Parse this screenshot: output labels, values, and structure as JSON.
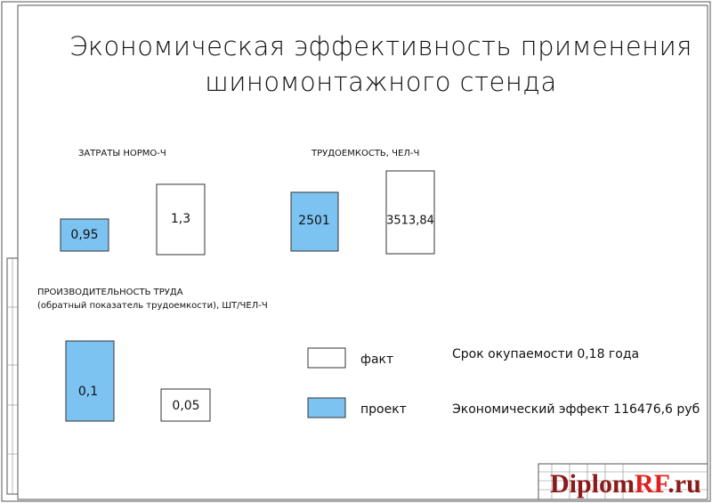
{
  "title": {
    "line1": "Экономическая эффективность применения",
    "line2": "шиномонтажного стенда"
  },
  "sections": [
    {
      "label": "ЗАТРАТЫ НОРМО-Ч",
      "project": "0,95",
      "fact": "1,3"
    },
    {
      "label": "ТРУДОЕМКОСТЬ, ЧЕЛ-Ч",
      "project": "2501",
      "fact": "3513,84"
    },
    {
      "label": "ПРОИЗВОДИТЕЛЬНОСТЬ ТРУДА",
      "sublabel": "(обратный показатель трудоемкости), ШТ/ЧЕЛ-Ч",
      "project": "0,1",
      "fact": "0,05"
    }
  ],
  "legend": {
    "fact": "факт",
    "project": "проект"
  },
  "results": {
    "payback": "Срок окупаемости 0,18 года",
    "effect": "Экономический эффект 116476,6 руб"
  },
  "watermark": {
    "part1": "Diplom",
    "part2": "RF",
    "part3": ".ru"
  }
}
